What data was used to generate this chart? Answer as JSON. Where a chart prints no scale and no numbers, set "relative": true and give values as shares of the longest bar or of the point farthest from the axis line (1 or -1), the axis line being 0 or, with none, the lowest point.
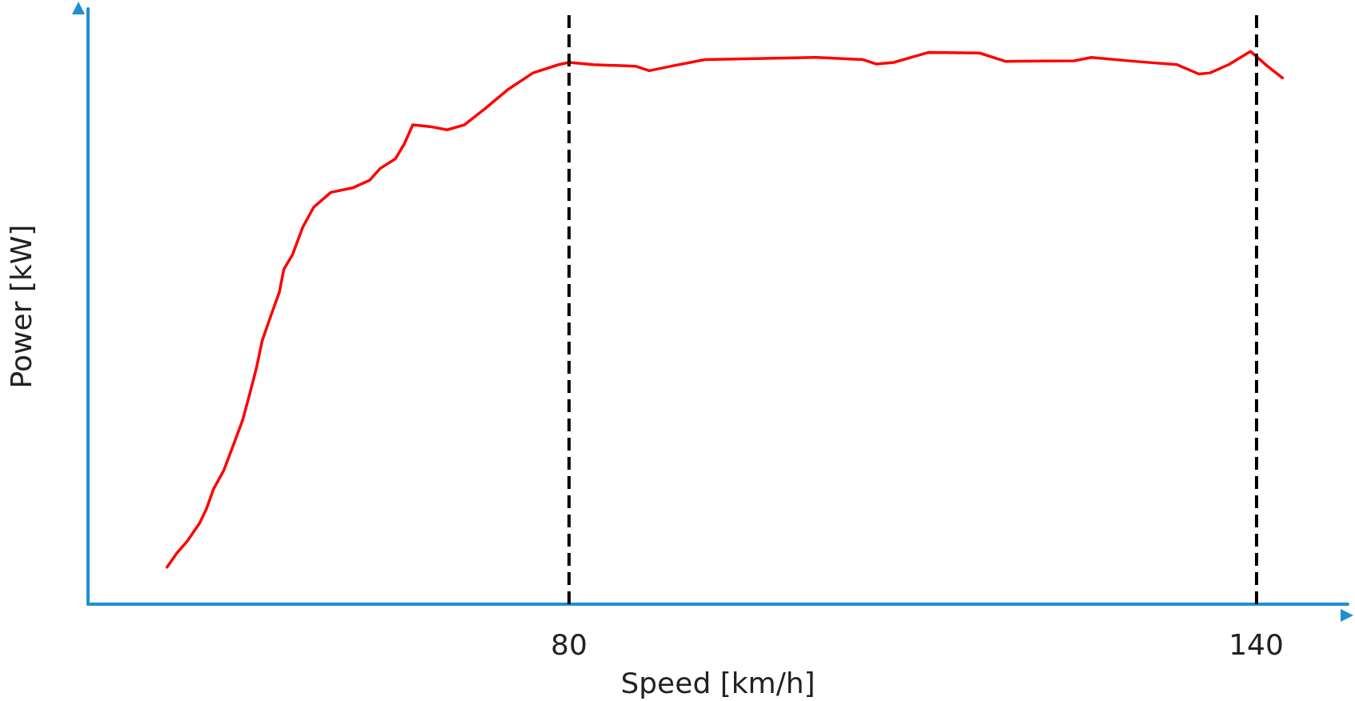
{
  "chart_data": {
    "type": "line",
    "xlabel": "Speed [km/h]",
    "ylabel": "Power [kW]",
    "relative": true,
    "xlim": [
      38,
      148
    ],
    "xticks": [
      80,
      140
    ],
    "grid": false,
    "marker": "none",
    "line_style": "solid",
    "ref_lines": [
      {
        "axis": "x",
        "value": 80,
        "color": "#000000",
        "line_style": "dashed"
      },
      {
        "axis": "x",
        "value": 140,
        "color": "#000000",
        "line_style": "dashed"
      }
    ],
    "series": [
      {
        "color": "#ff0000",
        "x": [
          44.9,
          45.7,
          46.7,
          47.75,
          48.35,
          48.95,
          49.85,
          50.75,
          51.5,
          52.1,
          52.7,
          53.2,
          54.0,
          54.7,
          55.1,
          55.85,
          56.75,
          57.7,
          59.2,
          61.1,
          62.6,
          63.5,
          64.85,
          65.6,
          66.35,
          67.85,
          69.35,
          70.85,
          72.7,
          74.6,
          76.85,
          79.1,
          80,
          82.1,
          85.85,
          87.0,
          88.85,
          91.85,
          101.6,
          105.7,
          106.85,
          108.35,
          111.35,
          115.85,
          118.1,
          124.1,
          125.6,
          129.35,
          133.1,
          135.0,
          135.95,
          137.6,
          139.5,
          141.0,
          142.3
        ],
        "values": [
          0.067,
          0.091,
          0.115,
          0.147,
          0.173,
          0.208,
          0.242,
          0.291,
          0.333,
          0.379,
          0.427,
          0.476,
          0.524,
          0.564,
          0.606,
          0.632,
          0.682,
          0.718,
          0.745,
          0.753,
          0.767,
          0.788,
          0.806,
          0.832,
          0.867,
          0.864,
          0.858,
          0.867,
          0.897,
          0.93,
          0.961,
          0.976,
          0.98,
          0.976,
          0.973,
          0.965,
          0.973,
          0.985,
          0.989,
          0.985,
          0.977,
          0.98,
          0.998,
          0.997,
          0.982,
          0.983,
          0.989,
          0.982,
          0.976,
          0.959,
          0.961,
          0.976,
          1,
          0.973,
          0.952
        ]
      }
    ]
  }
}
